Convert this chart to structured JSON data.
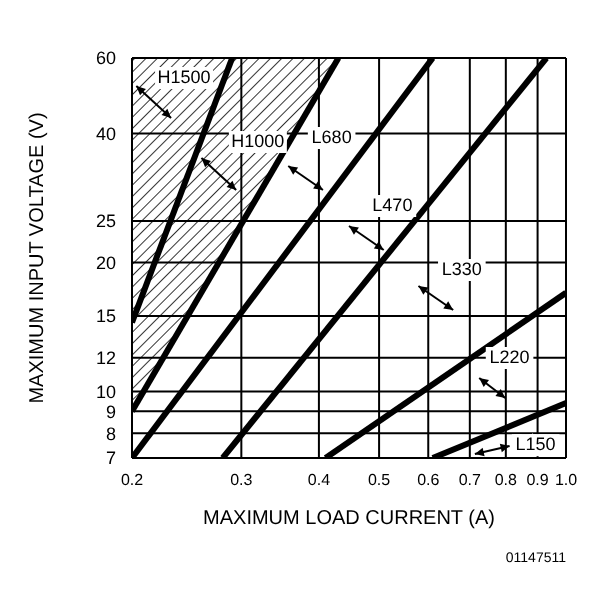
{
  "chart_data": {
    "type": "line",
    "xlabel": "MAXIMUM LOAD CURRENT (A)",
    "ylabel": "MAXIMUM INPUT VOLTAGE (V)",
    "log": "xy",
    "grid": true,
    "marker": "none",
    "line_style": "solid",
    "xlim": [
      0.2,
      1
    ],
    "xticks": [
      0.2,
      0.3,
      0.4,
      0.5,
      0.6,
      0.7,
      0.8,
      0.9,
      {
        "value": 1,
        "label": "1.0"
      }
    ],
    "ylim": [
      7,
      60
    ],
    "yticks": [
      7,
      8,
      9,
      10,
      12,
      15,
      20,
      25,
      40,
      60
    ],
    "series": [
      {
        "color": "#000000",
        "x": [
          0.2,
          0.29
        ],
        "values": [
          14.5,
          60
        ]
      },
      {
        "type": "area",
        "color": "#000000",
        "x": [
          0.2,
          0.43
        ],
        "values": [
          9,
          60
        ]
      },
      {
        "color": "#000000",
        "x": [
          0.2,
          0.61
        ],
        "values": [
          7,
          60
        ]
      },
      {
        "color": "#000000",
        "x": [
          0.28,
          0.93
        ],
        "values": [
          7,
          60
        ]
      },
      {
        "color": "#000000",
        "x": [
          0.41,
          1
        ],
        "values": [
          7,
          17
        ]
      },
      {
        "color": "#000000",
        "x": [
          0.61,
          1
        ],
        "values": [
          7,
          9.4
        ]
      }
    ],
    "annotations": [
      "H1500",
      "H1000",
      "L680",
      "L470",
      "L330",
      "L220",
      "L150",
      "01147511"
    ]
  }
}
